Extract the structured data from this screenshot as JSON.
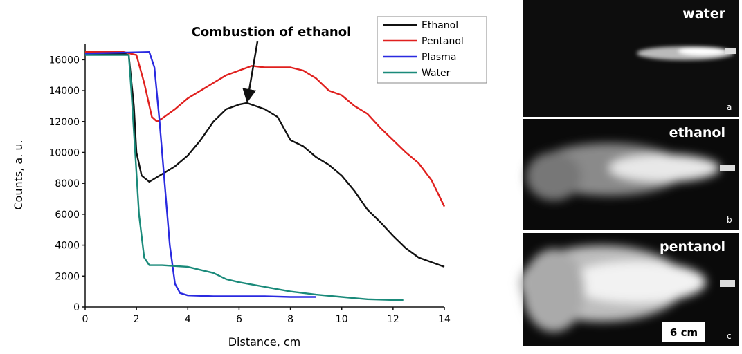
{
  "chart_data": {
    "type": "line",
    "xlabel": "Distance, cm",
    "ylabel": "Counts, a. u.",
    "annotation": "Combustion of ethanol",
    "annotation_point": [
      6.3,
      13200
    ],
    "xlim": [
      0,
      14
    ],
    "xticks": [
      0,
      2,
      4,
      6,
      8,
      10,
      12,
      14
    ],
    "ylim": [
      0,
      17000
    ],
    "yticks": [
      0,
      2000,
      4000,
      6000,
      8000,
      10000,
      12000,
      14000,
      16000
    ],
    "grid": false,
    "legend": "upper right",
    "series": [
      {
        "name": "Ethanol",
        "color": "#111111",
        "x": [
          0,
          1.5,
          1.7,
          1.9,
          2.0,
          2.2,
          2.5,
          3,
          3.5,
          4,
          4.5,
          5,
          5.5,
          6,
          6.3,
          7,
          7.5,
          8,
          8.5,
          9,
          9.5,
          10,
          10.5,
          11,
          11.5,
          12,
          12.5,
          13,
          13.5,
          14
        ],
        "values": [
          16400,
          16400,
          16300,
          13000,
          10000,
          8500,
          8100,
          8600,
          9100,
          9800,
          10800,
          12000,
          12800,
          13100,
          13200,
          12800,
          12300,
          10800,
          10400,
          9700,
          9200,
          8500,
          7500,
          6300,
          5500,
          4600,
          3800,
          3200,
          2900,
          2600
        ]
      },
      {
        "name": "Pentanol",
        "color": "#e0201e",
        "x": [
          0,
          1.5,
          2,
          2.3,
          2.6,
          2.8,
          3,
          3.5,
          4,
          4.5,
          5,
          5.5,
          6,
          6.5,
          7,
          8,
          8.5,
          9,
          9.5,
          10,
          10.5,
          11,
          11.5,
          12,
          12.5,
          13,
          13.5,
          14
        ],
        "values": [
          16500,
          16500,
          16300,
          14500,
          12300,
          12000,
          12200,
          12800,
          13500,
          14000,
          14500,
          15000,
          15300,
          15600,
          15500,
          15500,
          15300,
          14800,
          14000,
          13700,
          13000,
          12500,
          11600,
          10800,
          10000,
          9300,
          8200,
          6500
        ]
      },
      {
        "name": "Plasma",
        "color": "#2a2ae0",
        "x": [
          0,
          2.5,
          2.7,
          2.9,
          3.1,
          3.3,
          3.5,
          3.7,
          4,
          5,
          7,
          8,
          9
        ],
        "values": [
          16400,
          16500,
          15500,
          12000,
          8000,
          4000,
          1500,
          900,
          750,
          700,
          700,
          650,
          650
        ]
      },
      {
        "name": "Water",
        "color": "#1a8a7a",
        "x": [
          0,
          1.7,
          1.8,
          1.95,
          2.1,
          2.3,
          2.5,
          3,
          3.5,
          4,
          4.5,
          5,
          5.5,
          6,
          7,
          8,
          9,
          10,
          11,
          12,
          12.4
        ],
        "values": [
          16300,
          16300,
          14000,
          10000,
          6000,
          3200,
          2700,
          2700,
          2650,
          2600,
          2400,
          2200,
          1800,
          1600,
          1300,
          1000,
          800,
          650,
          500,
          450,
          450
        ]
      }
    ]
  },
  "photos": [
    {
      "label": "water",
      "tag": "a"
    },
    {
      "label": "ethanol",
      "tag": "b"
    },
    {
      "label": "pentanol",
      "tag": "c"
    }
  ],
  "scale_bar": "6 cm"
}
